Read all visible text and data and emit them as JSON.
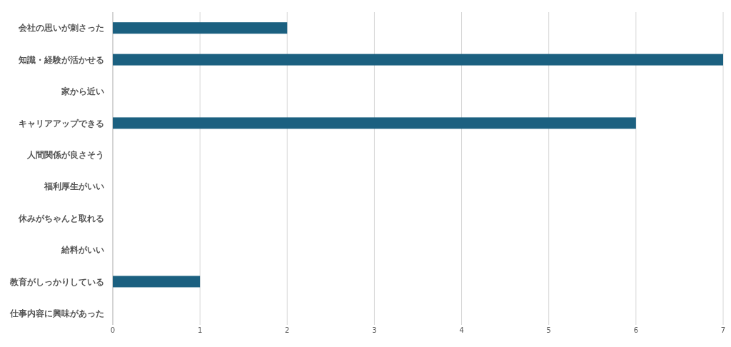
{
  "chart_data": {
    "type": "bar",
    "orientation": "horizontal",
    "categories": [
      "会社の思いが刺さった",
      "知識・経験が活かせる",
      "家から近い",
      "キャリアアップできる",
      "人間関係が良さそう",
      "福利厚生がいい",
      "休みがちゃんと取れる",
      "給料がいい",
      "教育がしっかりしている",
      "仕事内容に興味があった"
    ],
    "values": [
      2,
      7,
      0,
      6,
      0,
      0,
      0,
      0,
      1,
      0
    ],
    "color": "#1b6080",
    "xlim": [
      0,
      7
    ],
    "xticks": [
      0,
      1,
      2,
      3,
      4,
      5,
      6,
      7
    ],
    "grid": "x"
  }
}
